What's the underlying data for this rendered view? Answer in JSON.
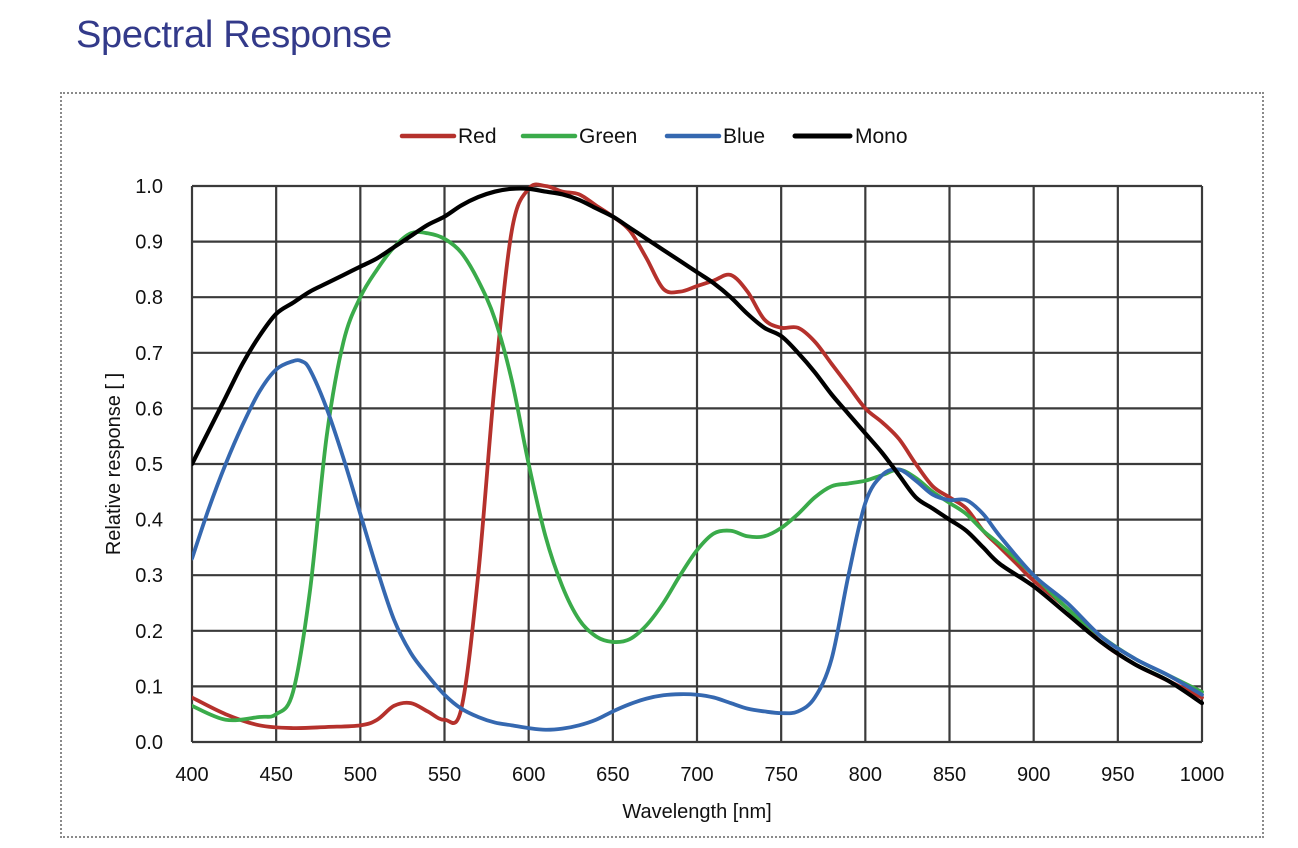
{
  "page": {
    "title": "Spectral Response"
  },
  "chart_data": {
    "type": "line",
    "title": "",
    "xlabel": "Wavelength  [nm]",
    "ylabel": "Relative  response [ ]",
    "xlim": [
      400,
      1000
    ],
    "ylim": [
      0,
      1.0
    ],
    "xticks": [
      400,
      450,
      500,
      550,
      600,
      650,
      700,
      750,
      800,
      850,
      900,
      950,
      1000
    ],
    "yticks": [
      0.0,
      0.1,
      0.2,
      0.3,
      0.4,
      0.5,
      0.6,
      0.7,
      0.8,
      0.9,
      1.0
    ],
    "ytick_labels": [
      "0.0",
      "0.1",
      "0.2",
      "0.3",
      "0.4",
      "0.5",
      "0.6",
      "0.7",
      "0.8",
      "0.9",
      "1.0"
    ],
    "grid": true,
    "legend_position": "top",
    "series": [
      {
        "name": "Red",
        "color": "#b5312c",
        "x": [
          400,
          420,
          440,
          460,
          480,
          500,
          510,
          520,
          530,
          540,
          550,
          560,
          570,
          580,
          590,
          600,
          610,
          620,
          630,
          640,
          650,
          660,
          670,
          680,
          690,
          700,
          710,
          720,
          730,
          740,
          750,
          760,
          770,
          780,
          790,
          800,
          810,
          820,
          830,
          840,
          850,
          860,
          870,
          880,
          890,
          900,
          920,
          940,
          960,
          980,
          1000
        ],
        "y": [
          0.08,
          0.05,
          0.03,
          0.025,
          0.027,
          0.03,
          0.04,
          0.065,
          0.07,
          0.055,
          0.04,
          0.06,
          0.3,
          0.65,
          0.92,
          0.995,
          1.0,
          0.99,
          0.985,
          0.965,
          0.945,
          0.92,
          0.87,
          0.815,
          0.81,
          0.82,
          0.83,
          0.84,
          0.81,
          0.76,
          0.745,
          0.745,
          0.72,
          0.68,
          0.64,
          0.6,
          0.575,
          0.545,
          0.5,
          0.46,
          0.44,
          0.42,
          0.38,
          0.35,
          0.32,
          0.29,
          0.24,
          0.18,
          0.14,
          0.11,
          0.08
        ]
      },
      {
        "name": "Green",
        "color": "#3aab4a",
        "x": [
          400,
          420,
          440,
          450,
          460,
          470,
          480,
          490,
          500,
          510,
          520,
          530,
          540,
          550,
          560,
          570,
          580,
          590,
          600,
          610,
          620,
          630,
          640,
          650,
          660,
          670,
          680,
          690,
          700,
          710,
          720,
          730,
          740,
          750,
          760,
          770,
          780,
          790,
          800,
          810,
          820,
          830,
          840,
          850,
          860,
          870,
          880,
          900,
          920,
          940,
          960,
          980,
          1000
        ],
        "y": [
          0.065,
          0.04,
          0.045,
          0.05,
          0.09,
          0.27,
          0.55,
          0.72,
          0.8,
          0.85,
          0.89,
          0.915,
          0.915,
          0.905,
          0.88,
          0.83,
          0.76,
          0.65,
          0.5,
          0.37,
          0.28,
          0.22,
          0.19,
          0.18,
          0.185,
          0.21,
          0.25,
          0.3,
          0.345,
          0.375,
          0.38,
          0.37,
          0.37,
          0.385,
          0.41,
          0.44,
          0.46,
          0.465,
          0.47,
          0.48,
          0.49,
          0.475,
          0.45,
          0.43,
          0.41,
          0.38,
          0.355,
          0.3,
          0.24,
          0.19,
          0.15,
          0.12,
          0.09
        ]
      },
      {
        "name": "Blue",
        "color": "#3568b0",
        "x": [
          400,
          410,
          420,
          430,
          440,
          450,
          460,
          465,
          470,
          480,
          490,
          500,
          510,
          520,
          530,
          540,
          550,
          560,
          570,
          580,
          590,
          600,
          610,
          620,
          630,
          640,
          650,
          660,
          670,
          680,
          690,
          700,
          710,
          720,
          730,
          740,
          750,
          760,
          770,
          780,
          790,
          800,
          810,
          820,
          830,
          840,
          850,
          860,
          870,
          880,
          900,
          920,
          940,
          960,
          980,
          1000
        ],
        "y": [
          0.33,
          0.42,
          0.5,
          0.57,
          0.63,
          0.67,
          0.685,
          0.685,
          0.67,
          0.6,
          0.51,
          0.41,
          0.31,
          0.22,
          0.16,
          0.12,
          0.085,
          0.06,
          0.045,
          0.035,
          0.03,
          0.025,
          0.022,
          0.024,
          0.03,
          0.04,
          0.055,
          0.068,
          0.078,
          0.084,
          0.086,
          0.085,
          0.08,
          0.07,
          0.06,
          0.055,
          0.052,
          0.055,
          0.08,
          0.15,
          0.3,
          0.43,
          0.48,
          0.49,
          0.47,
          0.445,
          0.435,
          0.435,
          0.41,
          0.37,
          0.3,
          0.25,
          0.19,
          0.15,
          0.12,
          0.085
        ]
      },
      {
        "name": "Mono",
        "color": "#000000",
        "x": [
          400,
          410,
          420,
          430,
          440,
          450,
          460,
          470,
          480,
          490,
          500,
          510,
          520,
          530,
          540,
          550,
          560,
          570,
          580,
          590,
          600,
          610,
          620,
          630,
          640,
          650,
          660,
          670,
          680,
          690,
          700,
          710,
          720,
          730,
          740,
          750,
          760,
          770,
          780,
          790,
          800,
          810,
          820,
          830,
          840,
          850,
          860,
          870,
          880,
          900,
          920,
          940,
          960,
          980,
          1000
        ],
        "y": [
          0.5,
          0.56,
          0.62,
          0.68,
          0.73,
          0.77,
          0.79,
          0.81,
          0.825,
          0.84,
          0.855,
          0.87,
          0.89,
          0.91,
          0.93,
          0.945,
          0.965,
          0.98,
          0.99,
          0.995,
          0.995,
          0.99,
          0.985,
          0.975,
          0.96,
          0.945,
          0.925,
          0.905,
          0.885,
          0.865,
          0.845,
          0.825,
          0.8,
          0.77,
          0.745,
          0.73,
          0.7,
          0.665,
          0.625,
          0.59,
          0.555,
          0.52,
          0.48,
          0.44,
          0.42,
          0.4,
          0.38,
          0.35,
          0.32,
          0.28,
          0.23,
          0.18,
          0.14,
          0.11,
          0.07
        ]
      }
    ]
  }
}
